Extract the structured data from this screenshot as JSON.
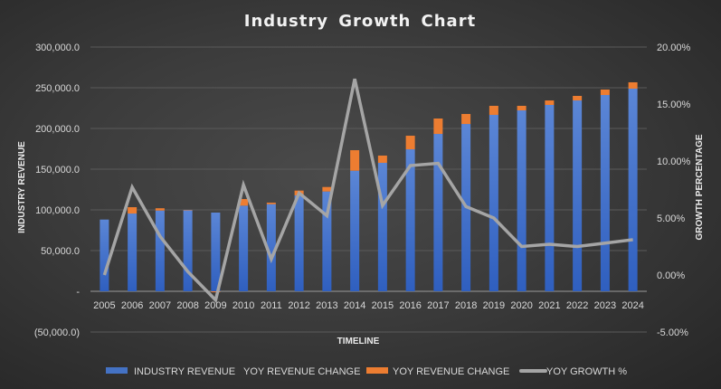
{
  "chart_data": {
    "type": "bar",
    "title": "Industry Growth Chart",
    "xlabel": "TIMELINE",
    "ylabel": "INDUSTRY REVENUE",
    "y2label": "GROWTH PERCENTAGE",
    "categories": [
      "2005",
      "2006",
      "2007",
      "2008",
      "2009",
      "2010",
      "2011",
      "2012",
      "2013",
      "2014",
      "2015",
      "2016",
      "2017",
      "2018",
      "2019",
      "2020",
      "2021",
      "2022",
      "2023",
      "2024"
    ],
    "ylim": [
      -50000,
      300000
    ],
    "y2lim": [
      -0.05,
      0.2
    ],
    "yticks": [
      "300,000.0",
      "250,000.0",
      "200,000.0",
      "150,000.0",
      "100,000.0",
      "50,000.0",
      "-",
      "(50,000.0)"
    ],
    "yticks_values": [
      300000,
      250000,
      200000,
      150000,
      100000,
      50000,
      0,
      -50000
    ],
    "y2ticks": [
      "20.00%",
      "15.00%",
      "10.00%",
      "5.00%",
      "0.00%",
      "-5.00%"
    ],
    "y2ticks_values": [
      0.2,
      0.15,
      0.1,
      0.05,
      0,
      -0.05
    ],
    "grid": true,
    "legend_position": "bottom",
    "series": [
      {
        "name": "INDUSTRY REVENUE   YOY REVENUE CHANGE",
        "type": "bar",
        "stack": true,
        "color": "#4472c4",
        "values": [
          88100,
          95500,
          99200,
          99500,
          96700,
          105200,
          107000,
          117800,
          122600,
          148100,
          157800,
          174400,
          193300,
          205500,
          216700,
          222200,
          228900,
          234400,
          241100,
          248900
        ]
      },
      {
        "name": "YOY REVENUE CHANGE",
        "type": "bar",
        "stack": true,
        "color": "#ed7d31",
        "values": [
          0,
          7800,
          2800,
          500,
          -1200,
          8100,
          1900,
          5900,
          5500,
          25200,
          8900,
          16700,
          18900,
          12300,
          11100,
          5600,
          5500,
          5600,
          6700,
          7800
        ]
      },
      {
        "name": "YOY GROWTH %",
        "type": "line",
        "axis": "right",
        "color": "#a5a5a5",
        "values": [
          0.0,
          0.077,
          0.034,
          0.003,
          -0.022,
          0.079,
          0.014,
          0.072,
          0.052,
          0.172,
          0.061,
          0.096,
          0.098,
          0.06,
          0.05,
          0.025,
          0.027,
          0.025,
          0.028,
          0.031
        ]
      }
    ]
  }
}
